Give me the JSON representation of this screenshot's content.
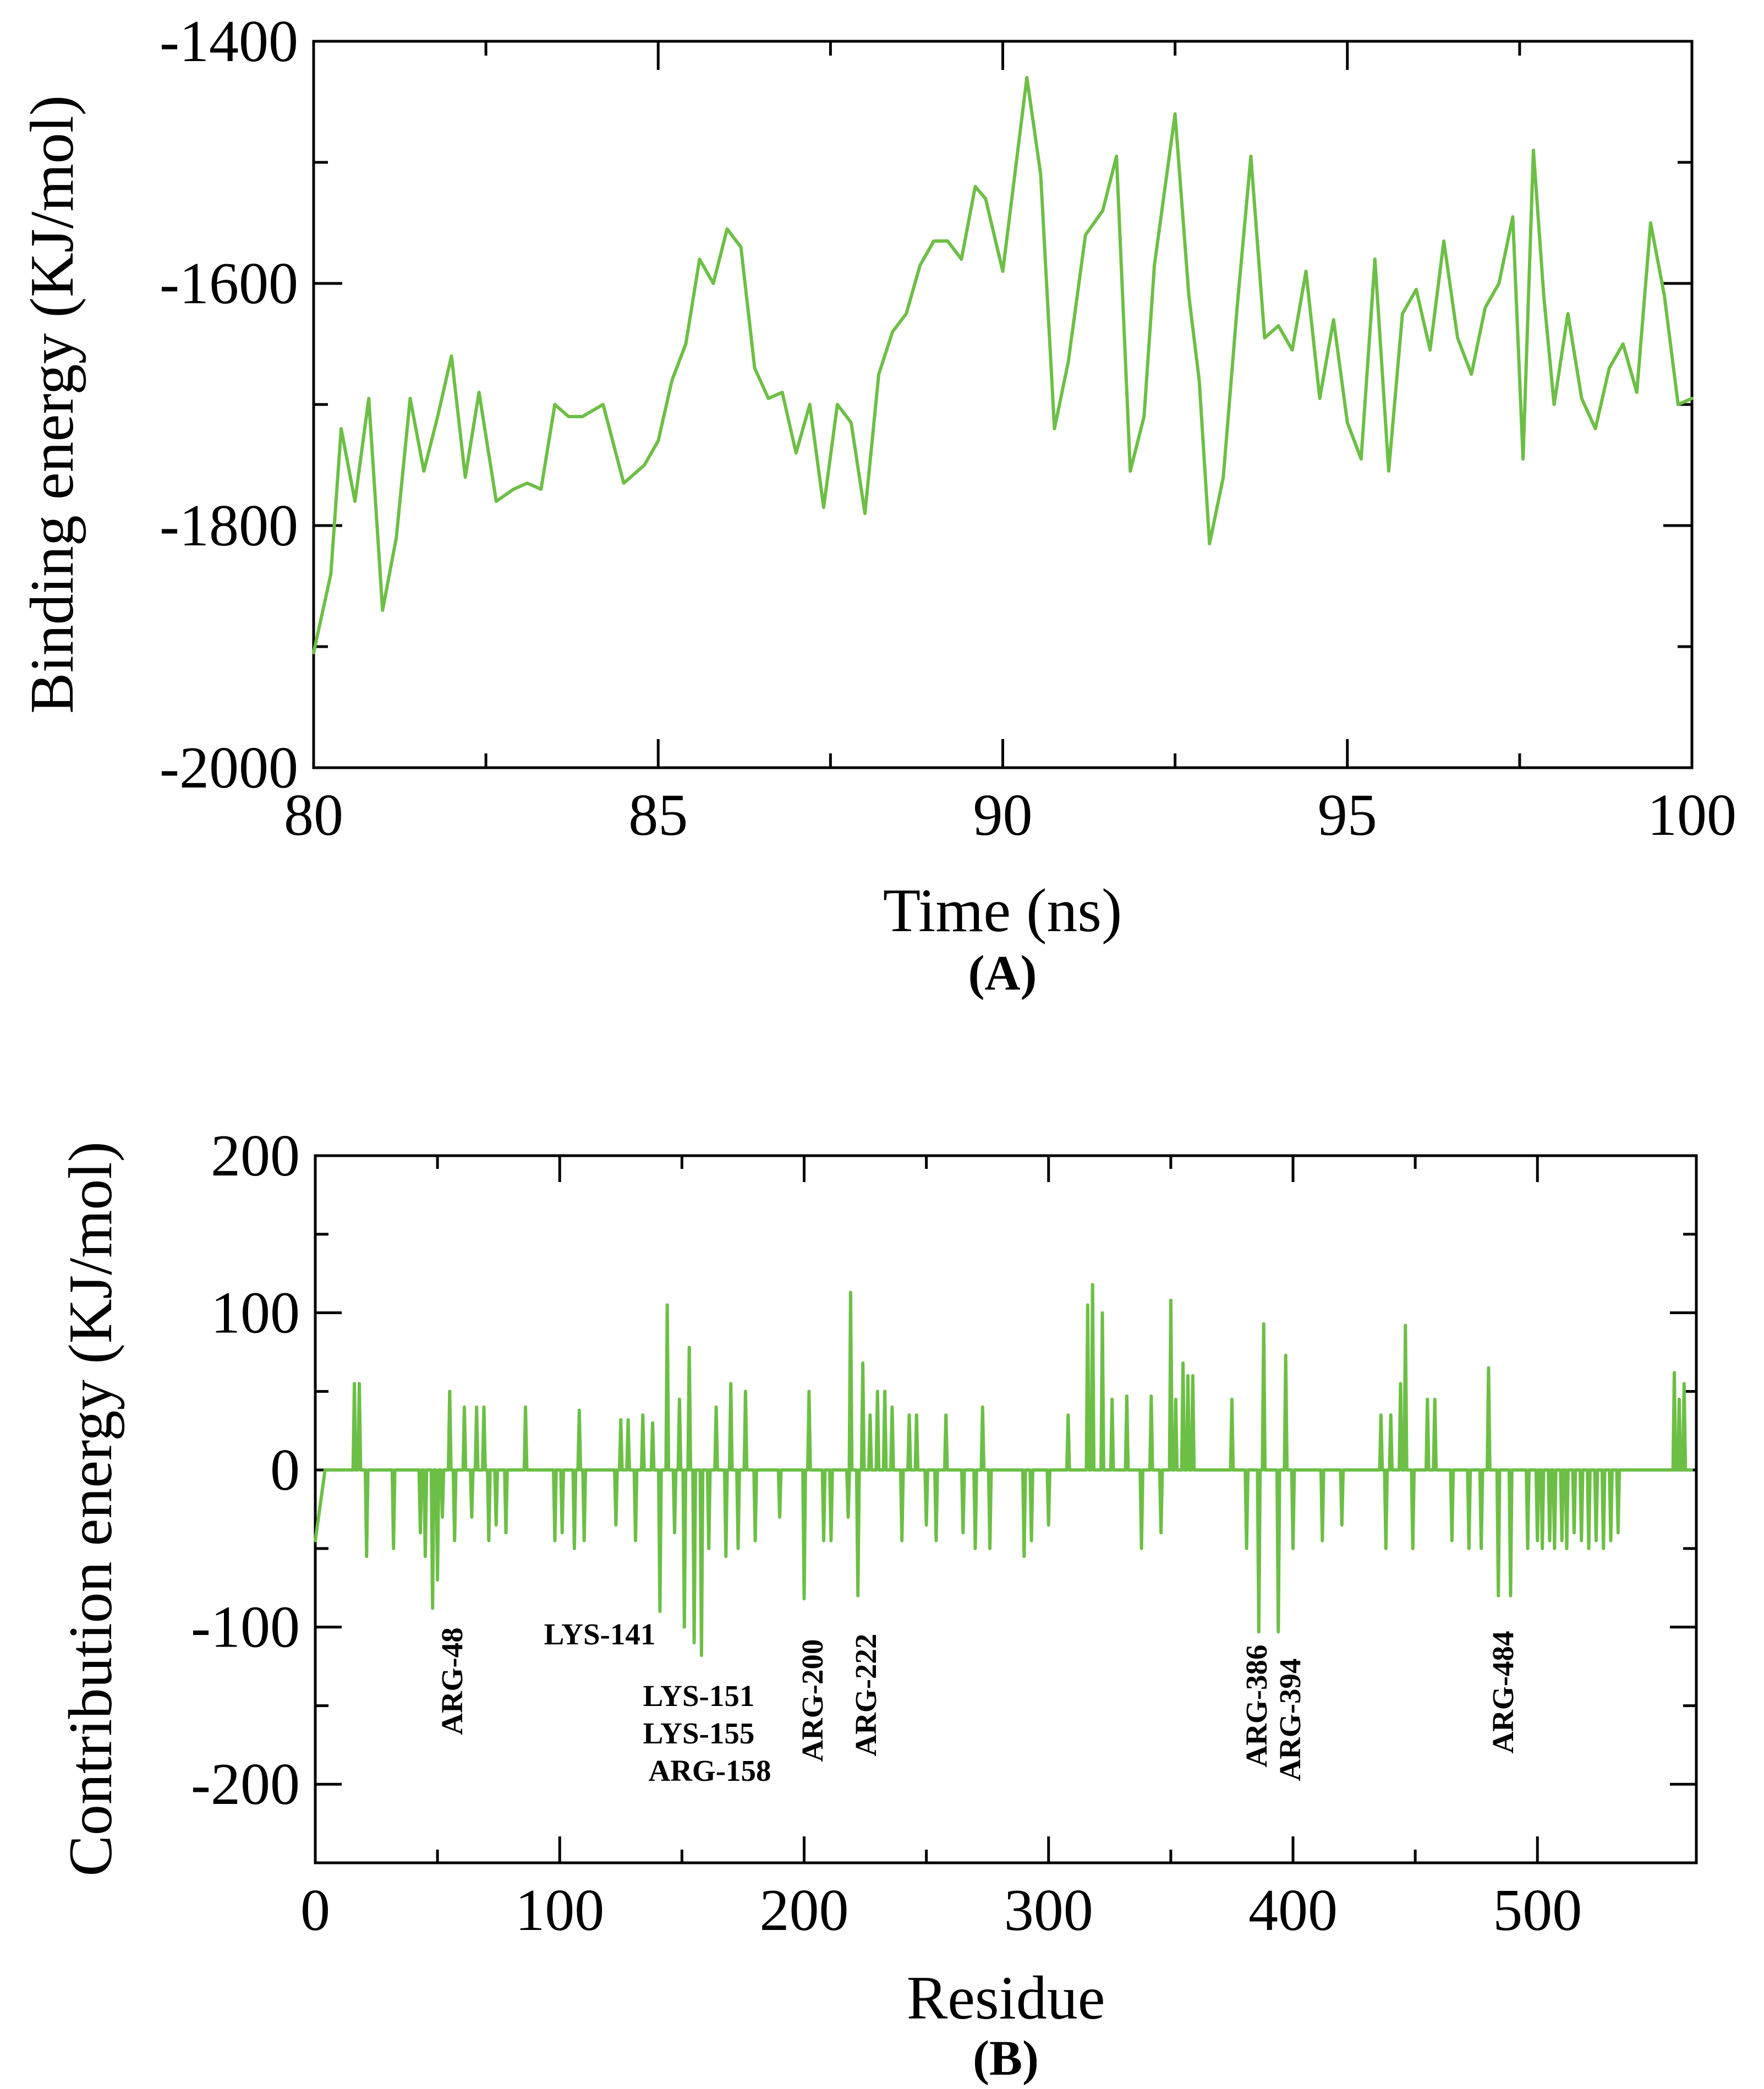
{
  "colors": {
    "series": "#6cbf45",
    "axis": "#000000",
    "background": "#ffffff"
  },
  "chart_data": [
    {
      "type": "line",
      "panel_label": "(A)",
      "xlabel": "Time (ns)",
      "ylabel": "Binding energy (KJ/mol)",
      "xlim": [
        80,
        100
      ],
      "ylim": [
        -2000,
        -1400
      ],
      "xticks": [
        80,
        85,
        90,
        95,
        100
      ],
      "yticks": [
        -2000,
        -1800,
        -1600,
        -1400
      ],
      "xtick_labels": [
        "80",
        "85",
        "90",
        "95",
        "100"
      ],
      "ytick_labels": [
        "-2000",
        "-1800",
        "-1600",
        "-1400"
      ],
      "grid": false,
      "series": [
        {
          "name": "Binding energy",
          "x": [
            80.0,
            80.25,
            80.4,
            80.6,
            80.8,
            81.0,
            81.2,
            81.4,
            81.6,
            81.8,
            82.0,
            82.2,
            82.4,
            82.65,
            82.9,
            83.1,
            83.3,
            83.5,
            83.7,
            83.9,
            84.2,
            84.5,
            84.8,
            85.0,
            85.2,
            85.4,
            85.6,
            85.8,
            86.0,
            86.2,
            86.4,
            86.6,
            86.8,
            87.0,
            87.2,
            87.4,
            87.6,
            87.8,
            88.0,
            88.2,
            88.4,
            88.6,
            88.8,
            89.0,
            89.2,
            89.4,
            89.6,
            89.75,
            90.0,
            90.35,
            90.55,
            90.75,
            90.95,
            91.2,
            91.45,
            91.65,
            91.85,
            92.05,
            92.2,
            92.5,
            92.7,
            92.85,
            93.0,
            93.2,
            93.4,
            93.6,
            93.8,
            94.0,
            94.2,
            94.4,
            94.6,
            94.8,
            95.0,
            95.2,
            95.4,
            95.6,
            95.8,
            96.0,
            96.2,
            96.4,
            96.6,
            96.8,
            97.0,
            97.2,
            97.4,
            97.55,
            97.7,
            97.85,
            98.0,
            98.2,
            98.4,
            98.6,
            98.8,
            99.0,
            99.2,
            99.4,
            99.6,
            99.8,
            100.0
          ],
          "values": [
            -1905,
            -1840,
            -1720,
            -1780,
            -1695,
            -1870,
            -1810,
            -1695,
            -1755,
            -1710,
            -1660,
            -1760,
            -1690,
            -1780,
            -1770,
            -1765,
            -1770,
            -1700,
            -1710,
            -1710,
            -1700,
            -1765,
            -1750,
            -1730,
            -1680,
            -1650,
            -1580,
            -1600,
            -1555,
            -1570,
            -1670,
            -1695,
            -1690,
            -1740,
            -1700,
            -1785,
            -1700,
            -1715,
            -1790,
            -1675,
            -1640,
            -1625,
            -1585,
            -1565,
            -1565,
            -1580,
            -1520,
            -1530,
            -1590,
            -1430,
            -1510,
            -1720,
            -1665,
            -1560,
            -1540,
            -1495,
            -1755,
            -1710,
            -1585,
            -1460,
            -1610,
            -1680,
            -1815,
            -1760,
            -1620,
            -1495,
            -1645,
            -1635,
            -1655,
            -1590,
            -1695,
            -1630,
            -1715,
            -1745,
            -1580,
            -1755,
            -1625,
            -1605,
            -1655,
            -1565,
            -1645,
            -1675,
            -1620,
            -1600,
            -1545,
            -1745,
            -1490,
            -1610,
            -1700,
            -1625,
            -1695,
            -1720,
            -1670,
            -1650,
            -1690,
            -1550,
            -1610,
            -1700,
            -1695
          ]
        }
      ]
    },
    {
      "type": "line",
      "panel_label": "(B)",
      "xlabel": "Residue",
      "ylabel": "Contribution energy (KJ/mol)",
      "xlim": [
        0,
        565
      ],
      "ylim": [
        -250,
        200
      ],
      "xticks": [
        0,
        100,
        200,
        300,
        400,
        500
      ],
      "yticks": [
        -200,
        -100,
        0,
        100,
        200
      ],
      "xtick_labels": [
        "0",
        "100",
        "200",
        "300",
        "400",
        "500"
      ],
      "ytick_labels": [
        "-200",
        "-100",
        "0",
        "100",
        "200"
      ],
      "grid": false,
      "spikes": [
        {
          "residue": 16,
          "value": 55
        },
        {
          "residue": 18,
          "value": 55
        },
        {
          "residue": 21,
          "value": -55
        },
        {
          "residue": 32,
          "value": -50
        },
        {
          "residue": 43,
          "value": -40
        },
        {
          "residue": 45,
          "value": -55
        },
        {
          "residue": 48,
          "value": -88
        },
        {
          "residue": 50,
          "value": -70
        },
        {
          "residue": 52,
          "value": -30
        },
        {
          "residue": 55,
          "value": 50
        },
        {
          "residue": 57,
          "value": -45
        },
        {
          "residue": 61,
          "value": 40
        },
        {
          "residue": 64,
          "value": -30
        },
        {
          "residue": 66,
          "value": 40
        },
        {
          "residue": 69,
          "value": 40
        },
        {
          "residue": 71,
          "value": -45
        },
        {
          "residue": 74,
          "value": -35
        },
        {
          "residue": 78,
          "value": -40
        },
        {
          "residue": 86,
          "value": 40
        },
        {
          "residue": 98,
          "value": -45
        },
        {
          "residue": 101,
          "value": -40
        },
        {
          "residue": 106,
          "value": -50
        },
        {
          "residue": 108,
          "value": 38
        },
        {
          "residue": 110,
          "value": -45
        },
        {
          "residue": 123,
          "value": -35
        },
        {
          "residue": 125,
          "value": 32
        },
        {
          "residue": 128,
          "value": 32
        },
        {
          "residue": 131,
          "value": -45
        },
        {
          "residue": 134,
          "value": 35
        },
        {
          "residue": 138,
          "value": 30
        },
        {
          "residue": 141,
          "value": -90
        },
        {
          "residue": 144,
          "value": 105
        },
        {
          "residue": 147,
          "value": -40
        },
        {
          "residue": 149,
          "value": 45
        },
        {
          "residue": 151,
          "value": -100
        },
        {
          "residue": 153,
          "value": 78
        },
        {
          "residue": 155,
          "value": -110
        },
        {
          "residue": 158,
          "value": -118
        },
        {
          "residue": 161,
          "value": -50
        },
        {
          "residue": 164,
          "value": 40
        },
        {
          "residue": 168,
          "value": -55
        },
        {
          "residue": 170,
          "value": 55
        },
        {
          "residue": 173,
          "value": -50
        },
        {
          "residue": 176,
          "value": 50
        },
        {
          "residue": 180,
          "value": -45
        },
        {
          "residue": 190,
          "value": -30
        },
        {
          "residue": 200,
          "value": -82
        },
        {
          "residue": 202,
          "value": 50
        },
        {
          "residue": 208,
          "value": -45
        },
        {
          "residue": 211,
          "value": -45
        },
        {
          "residue": 218,
          "value": -30
        },
        {
          "residue": 219,
          "value": 113
        },
        {
          "residue": 222,
          "value": -80
        },
        {
          "residue": 224,
          "value": 68
        },
        {
          "residue": 227,
          "value": 35
        },
        {
          "residue": 230,
          "value": 50
        },
        {
          "residue": 233,
          "value": 50
        },
        {
          "residue": 236,
          "value": 40
        },
        {
          "residue": 240,
          "value": -45
        },
        {
          "residue": 243,
          "value": 35
        },
        {
          "residue": 246,
          "value": 35
        },
        {
          "residue": 250,
          "value": -35
        },
        {
          "residue": 254,
          "value": -45
        },
        {
          "residue": 258,
          "value": 35
        },
        {
          "residue": 265,
          "value": -40
        },
        {
          "residue": 270,
          "value": -50
        },
        {
          "residue": 273,
          "value": 40
        },
        {
          "residue": 276,
          "value": -50
        },
        {
          "residue": 290,
          "value": -55
        },
        {
          "residue": 293,
          "value": -45
        },
        {
          "residue": 300,
          "value": -35
        },
        {
          "residue": 308,
          "value": 35
        },
        {
          "residue": 316,
          "value": 105
        },
        {
          "residue": 318,
          "value": 118
        },
        {
          "residue": 322,
          "value": 100
        },
        {
          "residue": 326,
          "value": 45
        },
        {
          "residue": 332,
          "value": 47
        },
        {
          "residue": 338,
          "value": -50
        },
        {
          "residue": 342,
          "value": 47
        },
        {
          "residue": 346,
          "value": -40
        },
        {
          "residue": 350,
          "value": 108
        },
        {
          "residue": 352,
          "value": 45
        },
        {
          "residue": 355,
          "value": 68
        },
        {
          "residue": 357,
          "value": 60
        },
        {
          "residue": 359,
          "value": 60
        },
        {
          "residue": 375,
          "value": 45
        },
        {
          "residue": 381,
          "value": -50
        },
        {
          "residue": 386,
          "value": -103
        },
        {
          "residue": 388,
          "value": 93
        },
        {
          "residue": 394,
          "value": -103
        },
        {
          "residue": 397,
          "value": 73
        },
        {
          "residue": 400,
          "value": -50
        },
        {
          "residue": 412,
          "value": -45
        },
        {
          "residue": 420,
          "value": -35
        },
        {
          "residue": 436,
          "value": 35
        },
        {
          "residue": 438,
          "value": -50
        },
        {
          "residue": 440,
          "value": 35
        },
        {
          "residue": 444,
          "value": 55
        },
        {
          "residue": 446,
          "value": 92
        },
        {
          "residue": 449,
          "value": -50
        },
        {
          "residue": 455,
          "value": 45
        },
        {
          "residue": 458,
          "value": 45
        },
        {
          "residue": 465,
          "value": -45
        },
        {
          "residue": 472,
          "value": -50
        },
        {
          "residue": 477,
          "value": -50
        },
        {
          "residue": 480,
          "value": 65
        },
        {
          "residue": 484,
          "value": -80
        },
        {
          "residue": 489,
          "value": -80
        },
        {
          "residue": 496,
          "value": -50
        },
        {
          "residue": 500,
          "value": -45
        },
        {
          "residue": 502,
          "value": -50
        },
        {
          "residue": 505,
          "value": -45
        },
        {
          "residue": 507,
          "value": -50
        },
        {
          "residue": 510,
          "value": -45
        },
        {
          "residue": 512,
          "value": -50
        },
        {
          "residue": 515,
          "value": -40
        },
        {
          "residue": 518,
          "value": -45
        },
        {
          "residue": 521,
          "value": -50
        },
        {
          "residue": 524,
          "value": -45
        },
        {
          "residue": 527,
          "value": -50
        },
        {
          "residue": 530,
          "value": -45
        },
        {
          "residue": 533,
          "value": -40
        },
        {
          "residue": 556,
          "value": 62
        },
        {
          "residue": 558,
          "value": 45
        },
        {
          "residue": 560,
          "value": 55
        }
      ],
      "annotations": [
        {
          "text": "ARG-48",
          "residue": 48,
          "orientation": "vertical"
        },
        {
          "text": "LYS-141",
          "residue": 141,
          "orientation": "horizontal"
        },
        {
          "text": "LYS-151",
          "residue": 151,
          "orientation": "horizontal"
        },
        {
          "text": "LYS-155",
          "residue": 155,
          "orientation": "horizontal"
        },
        {
          "text": "ARG-158",
          "residue": 158,
          "orientation": "horizontal"
        },
        {
          "text": "ARG-200",
          "residue": 200,
          "orientation": "vertical"
        },
        {
          "text": "ARG-222",
          "residue": 222,
          "orientation": "vertical"
        },
        {
          "text": "ARG-386",
          "residue": 386,
          "orientation": "vertical"
        },
        {
          "text": "ARG-394",
          "residue": 394,
          "orientation": "vertical"
        },
        {
          "text": "ARG-484",
          "residue": 484,
          "orientation": "vertical"
        }
      ]
    }
  ]
}
